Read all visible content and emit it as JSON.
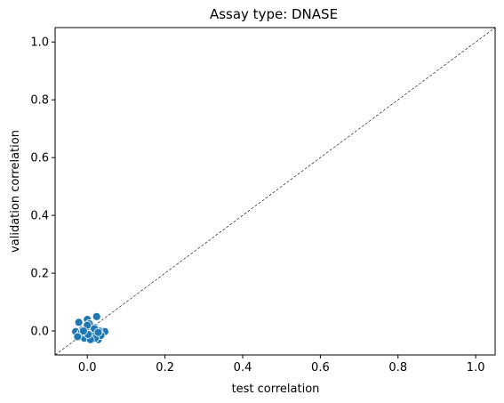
{
  "chart_data": {
    "type": "scatter",
    "title": "Assay type: DNASE",
    "xlabel": "test correlation",
    "ylabel": "validation correlation",
    "xlim": [
      -0.083,
      1.05
    ],
    "ylim": [
      -0.083,
      1.05
    ],
    "xticks": [
      0.0,
      0.2,
      0.4,
      0.6,
      0.8,
      1.0
    ],
    "yticks": [
      0.0,
      0.2,
      0.4,
      0.6,
      0.8,
      1.0
    ],
    "tick_labels": [
      "0.0",
      "0.2",
      "0.4",
      "0.6",
      "0.8",
      "1.0"
    ],
    "grid": false,
    "reference_line": {
      "x": [
        -0.083,
        1.05
      ],
      "y": [
        -0.083,
        1.05
      ],
      "style": "dashed",
      "color": "#000000"
    },
    "marker_color": "#1f77b4",
    "marker_edge_color": "#ffffff",
    "series": [
      {
        "x": [
          -0.03,
          -0.022,
          -0.018,
          -0.012,
          -0.008,
          -0.004,
          0.0,
          0.003,
          0.006,
          0.01,
          0.013,
          0.017,
          0.02,
          0.024,
          0.028,
          0.032,
          0.036,
          0.04,
          0.045,
          -0.015,
          -0.005,
          0.005,
          0.015,
          0.025,
          0.035,
          0.0,
          0.01,
          0.02,
          0.03,
          -0.025,
          0.008,
          0.018,
          0.028,
          0.002,
          -0.01
        ],
        "y": [
          -0.002,
          0.03,
          -0.01,
          0.005,
          -0.025,
          0.01,
          0.04,
          -0.005,
          0.0,
          -0.018,
          0.008,
          -0.022,
          0.012,
          0.05,
          -0.03,
          0.002,
          -0.012,
          -0.008,
          -0.002,
          -0.005,
          0.002,
          0.025,
          -0.028,
          0.005,
          -0.015,
          0.02,
          -0.01,
          -0.025,
          0.0,
          -0.02,
          -0.03,
          0.008,
          -0.005,
          -0.012,
          0.0
        ]
      }
    ]
  }
}
